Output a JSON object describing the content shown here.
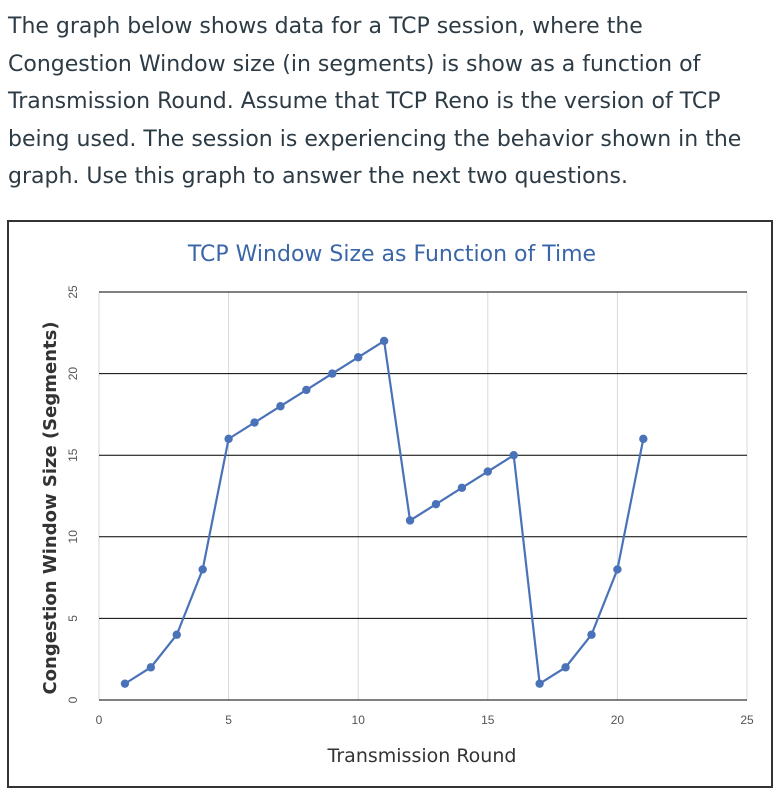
{
  "question": {
    "text": "The graph below shows data for a TCP session, where the Congestion Window size (in segments) is show as a function of Transmission Round.  Assume that TCP Reno is the version of TCP being used.  The session is experiencing the behavior shown in the graph.  Use this graph to answer the next two questions."
  },
  "chart_data": {
    "type": "line",
    "title": "TCP Window Size as Function of Time",
    "xlabel": "Transmission Round",
    "ylabel": "Congestion Window Size (Segments)",
    "xlim": [
      0,
      25
    ],
    "ylim": [
      0,
      25
    ],
    "xticks": [
      0,
      5,
      10,
      15,
      20,
      25
    ],
    "yticks": [
      0,
      5,
      10,
      15,
      20,
      25
    ],
    "grid": true,
    "line_color": "#4a72b8",
    "series": [
      {
        "x": [
          1,
          2,
          3,
          4,
          5,
          6,
          7,
          8,
          9,
          10,
          11,
          12,
          13,
          14,
          15,
          16,
          17,
          18,
          19,
          20,
          21
        ],
        "values": [
          1,
          2,
          4,
          8,
          16,
          17,
          18,
          19,
          20,
          21,
          22,
          11,
          12,
          13,
          14,
          15,
          1,
          2,
          4,
          8,
          16
        ]
      }
    ]
  }
}
